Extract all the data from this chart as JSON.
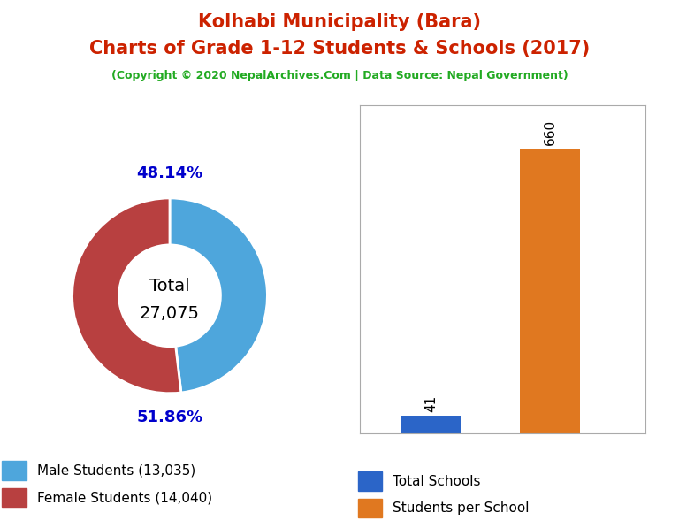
{
  "title_line1": "Kolhabi Municipality (Bara)",
  "title_line2": "Charts of Grade 1-12 Students & Schools (2017)",
  "subtitle": "(Copyright © 2020 NepalArchives.Com | Data Source: Nepal Government)",
  "title_color": "#cc2200",
  "subtitle_color": "#22aa22",
  "male_students": 13035,
  "female_students": 14040,
  "total_students": 27075,
  "male_pct": "48.14%",
  "female_pct": "51.86%",
  "male_color": "#4ea6dc",
  "female_color": "#b84040",
  "total_schools": 41,
  "students_per_school": 660,
  "bar_school_color": "#2b65c8",
  "bar_sps_color": "#e07820",
  "legend_pct_color": "#0000cc",
  "background_color": "#ffffff"
}
